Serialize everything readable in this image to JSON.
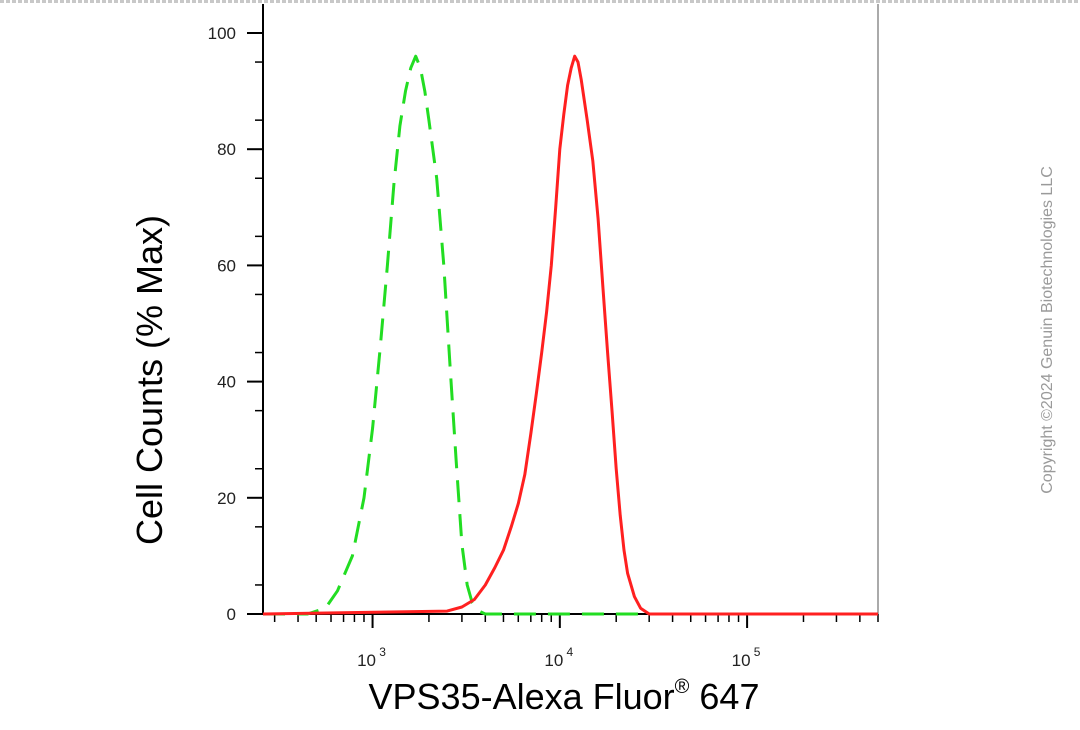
{
  "chart_data": {
    "type": "line",
    "title": "",
    "xlabel": "VPS35-Alexa Fluor",
    "xlabel_superscript": "®",
    "xlabel_suffix": " 647",
    "ylabel": "Cell Counts (% Max)",
    "x_scale": "log",
    "xlim": [
      260,
      500000
    ],
    "ylim": [
      0,
      100
    ],
    "y_ticks": [
      0,
      20,
      40,
      60,
      80,
      100
    ],
    "y_tick_labels": [
      "0",
      "20",
      "40",
      "60",
      "80",
      "100"
    ],
    "x_major_ticks": [
      {
        "value": 1000,
        "base": "10",
        "exp": "3"
      },
      {
        "value": 10000,
        "base": "10",
        "exp": "4"
      },
      {
        "value": 100000,
        "base": "10",
        "exp": "5"
      }
    ],
    "grid": false,
    "legend": "none",
    "series": [
      {
        "style": "dashed",
        "color": "#22dd22",
        "x": [
          260,
          450,
          560,
          650,
          780,
          900,
          1000,
          1100,
          1200,
          1300,
          1400,
          1500,
          1600,
          1700,
          1800,
          1900,
          2000,
          2200,
          2400,
          2600,
          2800,
          3000,
          3200,
          3400,
          3700,
          4000,
          5000,
          10000,
          100000,
          500000
        ],
        "y": [
          0,
          0,
          1,
          4,
          10,
          20,
          32,
          46,
          60,
          74,
          84,
          90,
          94,
          96,
          94,
          90,
          85,
          75,
          60,
          42,
          26,
          12,
          5,
          2,
          0.5,
          0,
          0,
          0,
          0,
          0
        ]
      },
      {
        "style": "solid",
        "color": "#ff2020",
        "x": [
          260,
          2500,
          3000,
          3500,
          4000,
          4500,
          5000,
          5500,
          6000,
          6500,
          7000,
          7500,
          8000,
          8500,
          9000,
          9500,
          10000,
          10500,
          11000,
          11500,
          12000,
          12500,
          13000,
          14000,
          15000,
          16000,
          17000,
          18000,
          19000,
          20000,
          21000,
          22000,
          23000,
          25000,
          27000,
          30000,
          50000,
          500000
        ],
        "y": [
          0,
          0.5,
          1.2,
          2.5,
          5,
          8,
          11,
          15,
          19,
          24,
          31,
          38,
          45,
          52,
          60,
          70,
          80,
          86,
          91,
          94,
          96,
          95,
          92,
          85,
          78,
          68,
          56,
          45,
          35,
          25,
          17,
          11,
          7,
          3,
          1,
          0,
          0,
          0
        ]
      }
    ]
  },
  "copyright": "Copyright ©2024 Genuin Biotechnologies LLC"
}
